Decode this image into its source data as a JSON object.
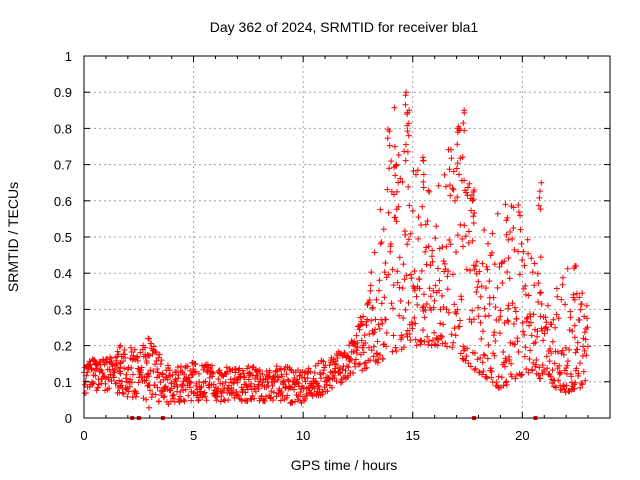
{
  "chart_data": {
    "type": "scatter",
    "title": "Day 362 of 2024, SRMTID for receiver bla1",
    "xlabel": "GPS time / hours",
    "ylabel": "SRMTID / TECUs",
    "xlim": [
      0,
      24
    ],
    "ylim": [
      0,
      1
    ],
    "grid": true,
    "marker": "+",
    "color": "#ff0000",
    "xticks": [
      0,
      5,
      10,
      15,
      20
    ],
    "yticks": [
      0,
      0.1,
      0.2,
      0.3,
      0.4,
      0.5,
      0.6,
      0.7,
      0.8,
      0.9,
      1
    ],
    "xtick_labels": [
      "0",
      "5",
      "10",
      "15",
      "20"
    ],
    "ytick_labels": [
      "0",
      "0.1",
      "0.2",
      "0.3",
      "0.4",
      "0.5",
      "0.6",
      "0.7",
      "0.8",
      "0.9",
      "1"
    ],
    "x_range_of_data": [
      0,
      23
    ],
    "envelope_hours": [
      0,
      1,
      2,
      3,
      4,
      5,
      6,
      7,
      8,
      9,
      10,
      11,
      12,
      13,
      14,
      15,
      16,
      17,
      18,
      19,
      20,
      21,
      22,
      23
    ],
    "envelope_low": [
      0.06,
      0.07,
      0.05,
      0.04,
      0.03,
      0.04,
      0.04,
      0.04,
      0.04,
      0.04,
      0.03,
      0.06,
      0.1,
      0.13,
      0.18,
      0.2,
      0.2,
      0.18,
      0.12,
      0.08,
      0.12,
      0.1,
      0.07,
      0.09
    ],
    "envelope_high": [
      0.17,
      0.17,
      0.2,
      0.22,
      0.15,
      0.16,
      0.15,
      0.15,
      0.15,
      0.15,
      0.14,
      0.17,
      0.2,
      0.35,
      0.9,
      0.72,
      0.6,
      0.85,
      0.55,
      0.59,
      0.65,
      0.32,
      0.42,
      0.32
    ],
    "peaks": [
      {
        "x": 14.7,
        "y": 0.9
      },
      {
        "x": 14.8,
        "y": 0.85
      },
      {
        "x": 14.2,
        "y": 0.7
      },
      {
        "x": 15.5,
        "y": 0.72
      },
      {
        "x": 17.3,
        "y": 0.85
      },
      {
        "x": 17.1,
        "y": 0.8
      },
      {
        "x": 17.8,
        "y": 0.63
      },
      {
        "x": 19.3,
        "y": 0.59
      },
      {
        "x": 20.8,
        "y": 0.65
      },
      {
        "x": 22.4,
        "y": 0.42
      },
      {
        "x": 2.9,
        "y": 0.22
      },
      {
        "x": 1.6,
        "y": 0.2
      }
    ],
    "gap_markers_x": [
      2.2,
      2.5,
      3.6,
      17.8,
      20.6
    ]
  }
}
